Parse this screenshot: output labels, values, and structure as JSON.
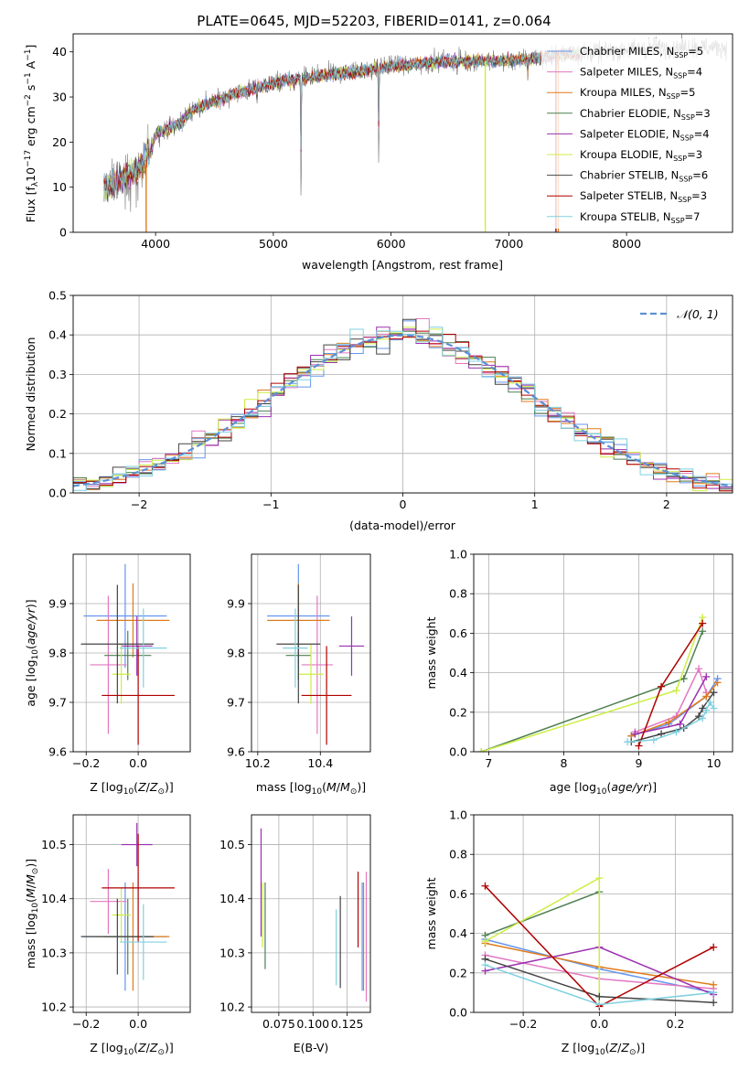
{
  "colors": {
    "Chabrier MILES": "#6495ed",
    "Salpeter MILES": "#e377c2",
    "Kroupa MILES": "#e07b1a",
    "Chabrier ELODIE": "#4e8050",
    "Salpeter ELODIE": "#9b30b0",
    "Kroupa ELODIE": "#ccee44",
    "Chabrier STELIB": "#444444",
    "Salpeter STELIB": "#b00000",
    "Kroupa STELIB": "#7fd0e0"
  },
  "chart_data": [
    {
      "id": "spectrum",
      "type": "line",
      "title": "PLATE=0645, MJD=52203, FIBERID=0141, z=0.064",
      "xlabel": "wavelength [Angstrom, rest frame]",
      "ylabel": "Flux [f_λ 10^-17 erg cm^-2 s^-1 A^-1]",
      "xlim": [
        3300,
        8900
      ],
      "ylim": [
        0,
        44
      ],
      "xticks": [
        4000,
        5000,
        6000,
        7000,
        8000
      ],
      "yticks": [
        0,
        10,
        20,
        30,
        40
      ],
      "legend_position": "top-right",
      "legend": [
        {
          "model": "Chabrier MILES",
          "label": "Chabrier MILES, N",
          "sub": "SSP",
          "n": "=5"
        },
        {
          "model": "Salpeter MILES",
          "label": "Salpeter MILES, N",
          "sub": "SSP",
          "n": "=4"
        },
        {
          "model": "Kroupa MILES",
          "label": "Kroupa MILES, N",
          "sub": "SSP",
          "n": "=5"
        },
        {
          "model": "Chabrier ELODIE",
          "label": "Chabrier ELODIE, N",
          "sub": "SSP",
          "n": "=3"
        },
        {
          "model": "Salpeter ELODIE",
          "label": "Salpeter ELODIE, N",
          "sub": "SSP",
          "n": "=4"
        },
        {
          "model": "Kroupa ELODIE",
          "label": "Kroupa ELODIE, N",
          "sub": "SSP",
          "n": "=3"
        },
        {
          "model": "Chabrier STELIB",
          "label": "Chabrier STELIB, N",
          "sub": "SSP",
          "n": "=6"
        },
        {
          "model": "Salpeter STELIB",
          "label": "Salpeter STELIB, N",
          "sub": "SSP",
          "n": "=3"
        },
        {
          "model": "Kroupa STELIB",
          "label": "Kroupa STELIB, N",
          "sub": "SSP",
          "n": "=7"
        }
      ],
      "continuum": [
        [
          3560,
          10
        ],
        [
          3650,
          11
        ],
        [
          3800,
          13
        ],
        [
          3900,
          15
        ],
        [
          3950,
          17
        ],
        [
          4000,
          22
        ],
        [
          4200,
          24
        ],
        [
          4300,
          27
        ],
        [
          4500,
          29
        ],
        [
          4700,
          31
        ],
        [
          5000,
          33
        ],
        [
          5200,
          34
        ],
        [
          5500,
          35
        ],
        [
          5800,
          36
        ],
        [
          6000,
          37
        ],
        [
          6300,
          37.5
        ],
        [
          6500,
          38
        ],
        [
          6800,
          38
        ],
        [
          7000,
          38
        ],
        [
          7200,
          38.5
        ],
        [
          7500,
          39.5
        ],
        [
          7800,
          40
        ],
        [
          8000,
          40.5
        ],
        [
          8300,
          41
        ],
        [
          8600,
          41
        ],
        [
          8850,
          41
        ]
      ],
      "dips": [
        [
          3933,
          8
        ],
        [
          4300,
          -2
        ],
        [
          4861,
          -3
        ],
        [
          5175,
          -3
        ],
        [
          5235,
          -31
        ],
        [
          5892,
          -4
        ],
        [
          5895,
          -22
        ],
        [
          6563,
          -3
        ],
        [
          7160,
          -4
        ]
      ],
      "model_drops": [
        {
          "model": "Kroupa MILES",
          "x": 3920
        },
        {
          "model": "Kroupa ELODIE",
          "x": 6800
        },
        {
          "model": "Kroupa MILES",
          "x": 7420
        },
        {
          "model": "Salpeter STELIB",
          "x": 7400
        }
      ]
    },
    {
      "id": "residual_histogram",
      "type": "bar",
      "xlabel": "(data-model)/error",
      "ylabel": "Normed distribution",
      "xlim": [
        -2.5,
        2.5
      ],
      "ylim": [
        0,
        0.5
      ],
      "xticks": [
        -2,
        -1,
        0,
        1,
        2
      ],
      "yticks": [
        0.0,
        0.1,
        0.2,
        0.3,
        0.4,
        0.5
      ],
      "bin_width": 0.1,
      "reference_curve": {
        "label": "N(0,1)",
        "style": "dashed",
        "mean": 0,
        "sigma": 1
      },
      "legend_position": "top-right"
    },
    {
      "id": "age_vs_Z",
      "type": "scatter",
      "xlabel": "Z [log10(Z/Z⊙)]",
      "ylabel": "age [log10(age/yr)]",
      "xlim": [
        -0.25,
        0.2
      ],
      "ylim": [
        9.6,
        10.0
      ],
      "xticks": [
        -0.2,
        0.0
      ],
      "yticks": [
        9.6,
        9.7,
        9.8,
        9.9
      ],
      "points": [
        {
          "model": "Chabrier MILES",
          "x": -0.05,
          "xerr": 0.16,
          "y": 9.875,
          "yerr": 0.105
        },
        {
          "model": "Salpeter MILES",
          "x": -0.115,
          "xerr": 0.07,
          "y": 9.776,
          "yerr": 0.14
        },
        {
          "model": "Kroupa MILES",
          "x": -0.02,
          "xerr": 0.14,
          "y": 9.866,
          "yerr": 0.075
        },
        {
          "model": "Chabrier ELODIE",
          "x": -0.04,
          "xerr": 0.09,
          "y": 9.795,
          "yerr": 0.05
        },
        {
          "model": "Salpeter ELODIE",
          "x": -0.005,
          "xerr": 0.06,
          "y": 9.814,
          "yerr": 0.06
        },
        {
          "model": "Kroupa ELODIE",
          "x": -0.065,
          "xerr": 0.035,
          "y": 9.757,
          "yerr": 0.06
        },
        {
          "model": "Chabrier STELIB",
          "x": -0.08,
          "xerr": 0.14,
          "y": 9.818,
          "yerr": 0.12
        },
        {
          "model": "Salpeter STELIB",
          "x": 0.0,
          "xerr": 0.14,
          "y": 9.714,
          "yerr": 0.1
        },
        {
          "model": "Kroupa STELIB",
          "x": 0.02,
          "xerr": 0.09,
          "y": 9.81,
          "yerr": 0.08
        }
      ]
    },
    {
      "id": "age_vs_mass",
      "type": "scatter",
      "xlabel": "mass [log10(M/M⊙)]",
      "xlim": [
        10.18,
        10.56
      ],
      "ylim": [
        9.6,
        10.0
      ],
      "xticks": [
        10.2,
        10.4
      ],
      "yticks": [
        9.6,
        9.7,
        9.8,
        9.9
      ],
      "points": [
        {
          "model": "Chabrier MILES",
          "x": 10.33,
          "xerr": 0.1,
          "y": 9.875,
          "yerr": 0.105
        },
        {
          "model": "Salpeter MILES",
          "x": 10.39,
          "xerr": 0.05,
          "y": 9.776,
          "yerr": 0.14
        },
        {
          "model": "Kroupa MILES",
          "x": 10.33,
          "xerr": 0.1,
          "y": 9.866,
          "yerr": 0.075
        },
        {
          "model": "Chabrier ELODIE",
          "x": 10.33,
          "xerr": 0.04,
          "y": 9.795,
          "yerr": 0.05
        },
        {
          "model": "Salpeter ELODIE",
          "x": 10.5,
          "xerr": 0.04,
          "y": 9.814,
          "yerr": 0.06
        },
        {
          "model": "Kroupa ELODIE",
          "x": 10.37,
          "xerr": 0.04,
          "y": 9.757,
          "yerr": 0.06
        },
        {
          "model": "Chabrier STELIB",
          "x": 10.33,
          "xerr": 0.07,
          "y": 9.818,
          "yerr": 0.12
        },
        {
          "model": "Salpeter STELIB",
          "x": 10.42,
          "xerr": 0.08,
          "y": 9.714,
          "yerr": 0.1
        },
        {
          "model": "Kroupa STELIB",
          "x": 10.32,
          "xerr": 0.04,
          "y": 9.81,
          "yerr": 0.08
        }
      ]
    },
    {
      "id": "mass_weight_vs_age",
      "type": "line",
      "xlabel": "age [log10(age/yr)]",
      "ylabel": "mass weight",
      "xlim": [
        6.8,
        10.25
      ],
      "ylim": [
        0,
        1
      ],
      "xticks": [
        7,
        8,
        9,
        10
      ],
      "yticks": [
        0.0,
        0.2,
        0.4,
        0.6,
        0.8,
        1.0
      ],
      "series": [
        {
          "model": "Chabrier MILES",
          "x": [
            8.9,
            9.4,
            9.9,
            10.05
          ],
          "y": [
            0.08,
            0.14,
            0.28,
            0.37
          ]
        },
        {
          "model": "Salpeter MILES",
          "x": [
            8.95,
            9.5,
            9.8,
            9.9
          ],
          "y": [
            0.1,
            0.18,
            0.42,
            0.3
          ]
        },
        {
          "model": "Kroupa MILES",
          "x": [
            8.9,
            9.4,
            9.9,
            10.05
          ],
          "y": [
            0.08,
            0.15,
            0.28,
            0.35
          ]
        },
        {
          "model": "Chabrier ELODIE",
          "x": [
            6.9,
            9.6,
            9.85
          ],
          "y": [
            0.0,
            0.37,
            0.61
          ]
        },
        {
          "model": "Salpeter ELODIE",
          "x": [
            8.95,
            9.55,
            9.9
          ],
          "y": [
            0.09,
            0.14,
            0.38
          ]
        },
        {
          "model": "Kroupa ELODIE",
          "x": [
            6.9,
            9.5,
            9.85
          ],
          "y": [
            0.0,
            0.31,
            0.68
          ]
        },
        {
          "model": "Chabrier STELIB",
          "x": [
            8.9,
            9.3,
            9.6,
            9.8,
            9.85,
            10.0
          ],
          "y": [
            0.05,
            0.09,
            0.12,
            0.18,
            0.22,
            0.3
          ]
        },
        {
          "model": "Salpeter STELIB",
          "x": [
            9.0,
            9.3,
            9.85
          ],
          "y": [
            0.03,
            0.33,
            0.65
          ]
        },
        {
          "model": "Kroupa STELIB",
          "x": [
            8.85,
            9.2,
            9.5,
            9.85,
            9.9,
            9.95,
            10.0
          ],
          "y": [
            0.05,
            0.06,
            0.1,
            0.17,
            0.21,
            0.25,
            0.22
          ]
        }
      ]
    },
    {
      "id": "mass_vs_Z",
      "type": "scatter",
      "xlabel": "Z [log10(Z/Z⊙)]",
      "ylabel": "mass [log10(M/M⊙)]",
      "xlim": [
        -0.25,
        0.2
      ],
      "ylim": [
        10.19,
        10.555
      ],
      "xticks": [
        -0.2,
        0.0
      ],
      "yticks": [
        10.2,
        10.3,
        10.4,
        10.5
      ],
      "points": [
        {
          "model": "Chabrier MILES",
          "x": -0.05,
          "xerr": 0.16,
          "y": 10.33,
          "yerr": 0.1
        },
        {
          "model": "Salpeter MILES",
          "x": -0.115,
          "xerr": 0.07,
          "y": 10.395,
          "yerr": 0.06
        },
        {
          "model": "Kroupa MILES",
          "x": -0.02,
          "xerr": 0.14,
          "y": 10.33,
          "yerr": 0.1
        },
        {
          "model": "Chabrier ELODIE",
          "x": -0.04,
          "xerr": 0.09,
          "y": 10.33,
          "yerr": 0.07
        },
        {
          "model": "Salpeter ELODIE",
          "x": -0.005,
          "xerr": 0.06,
          "y": 10.5,
          "yerr": 0.04
        },
        {
          "model": "Kroupa ELODIE",
          "x": -0.065,
          "xerr": 0.035,
          "y": 10.37,
          "yerr": 0.05
        },
        {
          "model": "Chabrier STELIB",
          "x": -0.08,
          "xerr": 0.14,
          "y": 10.33,
          "yerr": 0.07
        },
        {
          "model": "Salpeter STELIB",
          "x": 0.0,
          "xerr": 0.14,
          "y": 10.42,
          "yerr": 0.1
        },
        {
          "model": "Kroupa STELIB",
          "x": 0.02,
          "xerr": 0.09,
          "y": 10.32,
          "yerr": 0.07
        }
      ]
    },
    {
      "id": "mass_vs_ebv",
      "type": "scatter",
      "xlabel": "E(B-V)",
      "xlim": [
        0.055,
        0.142
      ],
      "ylim": [
        10.19,
        10.555
      ],
      "xticks": [
        0.075,
        0.1,
        0.125
      ],
      "xticklabels": [
        "0.075",
        "0.100",
        "0.125"
      ],
      "yticks": [
        10.2,
        10.3,
        10.4,
        10.5
      ],
      "points": [
        {
          "model": "Chabrier MILES",
          "x": 0.136,
          "y": 10.33,
          "yerr": 0.1
        },
        {
          "model": "Salpeter MILES",
          "x": 0.139,
          "y": 10.33,
          "yerr": 0.12
        },
        {
          "model": "Kroupa MILES",
          "x": 0.137,
          "y": 10.33,
          "yerr": 0.1
        },
        {
          "model": "Chabrier ELODIE",
          "x": 0.065,
          "y": 10.35,
          "yerr": 0.08
        },
        {
          "model": "Salpeter ELODIE",
          "x": 0.062,
          "y": 10.43,
          "yerr": 0.1
        },
        {
          "model": "Kroupa ELODIE",
          "x": 0.063,
          "y": 10.37,
          "yerr": 0.06
        },
        {
          "model": "Chabrier STELIB",
          "x": 0.12,
          "y": 10.32,
          "yerr": 0.085
        },
        {
          "model": "Salpeter STELIB",
          "x": 0.133,
          "y": 10.38,
          "yerr": 0.07
        },
        {
          "model": "Kroupa STELIB",
          "x": 0.117,
          "y": 10.31,
          "yerr": 0.07
        }
      ]
    },
    {
      "id": "mass_weight_vs_Z",
      "type": "line",
      "xlabel": "Z [log10(Z/Z⊙)]",
      "ylabel": "mass weight",
      "xlim": [
        -0.33,
        0.35
      ],
      "ylim": [
        0,
        1
      ],
      "xticks": [
        -0.2,
        0.0,
        0.2
      ],
      "yticks": [
        0.0,
        0.2,
        0.4,
        0.6,
        0.8,
        1.0
      ],
      "series": [
        {
          "model": "Chabrier MILES",
          "x": [
            -0.3,
            0.0,
            0.3
          ],
          "y": [
            0.37,
            0.22,
            0.1
          ]
        },
        {
          "model": "Salpeter MILES",
          "x": [
            -0.3,
            0.0,
            0.3
          ],
          "y": [
            0.29,
            0.17,
            0.12
          ]
        },
        {
          "model": "Kroupa MILES",
          "x": [
            -0.3,
            0.0,
            0.3
          ],
          "y": [
            0.35,
            0.23,
            0.14
          ]
        },
        {
          "model": "Chabrier ELODIE",
          "x": [
            -0.3,
            0.0
          ],
          "y": [
            0.39,
            0.61
          ]
        },
        {
          "model": "Salpeter ELODIE",
          "x": [
            -0.3,
            0.0,
            0.3
          ],
          "y": [
            0.21,
            0.33,
            0.09
          ]
        },
        {
          "model": "Kroupa ELODIE",
          "x": [
            -0.3,
            0.0,
            0.0
          ],
          "y": [
            0.36,
            0.68,
            0.04
          ]
        },
        {
          "model": "Chabrier STELIB",
          "x": [
            -0.3,
            0.0,
            0.3
          ],
          "y": [
            0.27,
            0.08,
            0.05
          ]
        },
        {
          "model": "Salpeter STELIB",
          "x": [
            -0.3,
            0.0,
            0.3
          ],
          "y": [
            0.64,
            0.03,
            0.33
          ]
        },
        {
          "model": "Kroupa STELIB",
          "x": [
            -0.3,
            0.0,
            0.3
          ],
          "y": [
            0.24,
            0.04,
            0.1
          ]
        }
      ]
    }
  ]
}
